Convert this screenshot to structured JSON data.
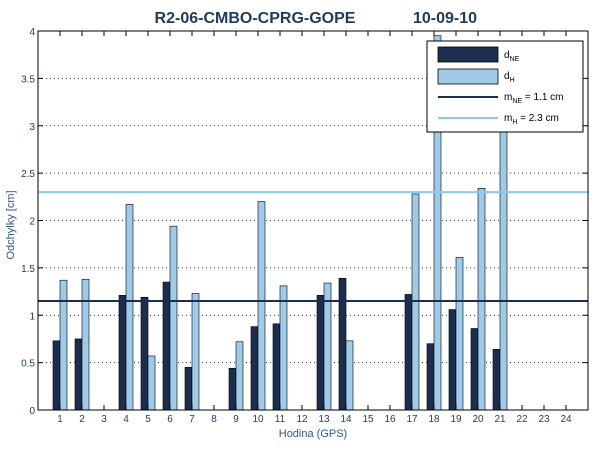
{
  "chart_data": {
    "type": "bar",
    "title": "R2-06-CMBO-CPRG-GOPE",
    "title_date": "10-09-10",
    "xlabel": "Hodina (GPS)",
    "ylabel": "Odchylky [cm]",
    "ylim": [
      0,
      4
    ],
    "yticks": [
      "0",
      "0.5",
      "1",
      "1.5",
      "2",
      "2.5",
      "3",
      "3.5",
      "4"
    ],
    "categories": [
      "1",
      "2",
      "3",
      "4",
      "5",
      "6",
      "7",
      "8",
      "9",
      "10",
      "11",
      "12",
      "13",
      "14",
      "15",
      "16",
      "17",
      "18",
      "19",
      "20",
      "21",
      "22",
      "23",
      "24"
    ],
    "series": [
      {
        "name": "dNE",
        "color": "#1c2e4e",
        "values": [
          0.73,
          0.75,
          null,
          1.21,
          1.19,
          1.35,
          0.45,
          null,
          0.44,
          0.88,
          0.91,
          null,
          1.21,
          1.39,
          null,
          null,
          1.22,
          0.7,
          1.06,
          0.86,
          0.64,
          null,
          null,
          null
        ]
      },
      {
        "name": "dH",
        "color": "#9fcbe9",
        "values": [
          1.37,
          1.38,
          null,
          2.17,
          0.57,
          1.94,
          1.23,
          null,
          0.72,
          2.2,
          1.31,
          null,
          1.34,
          0.73,
          null,
          null,
          2.28,
          3.95,
          1.61,
          2.34,
          3.1,
          null,
          null,
          null
        ]
      }
    ],
    "lines": [
      {
        "name": "mNE = 1.1 cm",
        "value": 1.15,
        "color": "#1c2e4e"
      },
      {
        "name": "mH = 2.3 cm",
        "value": 2.3,
        "color": "#8fc8ec"
      }
    ],
    "grid": "y-dotted",
    "legend_position": "top-right"
  }
}
